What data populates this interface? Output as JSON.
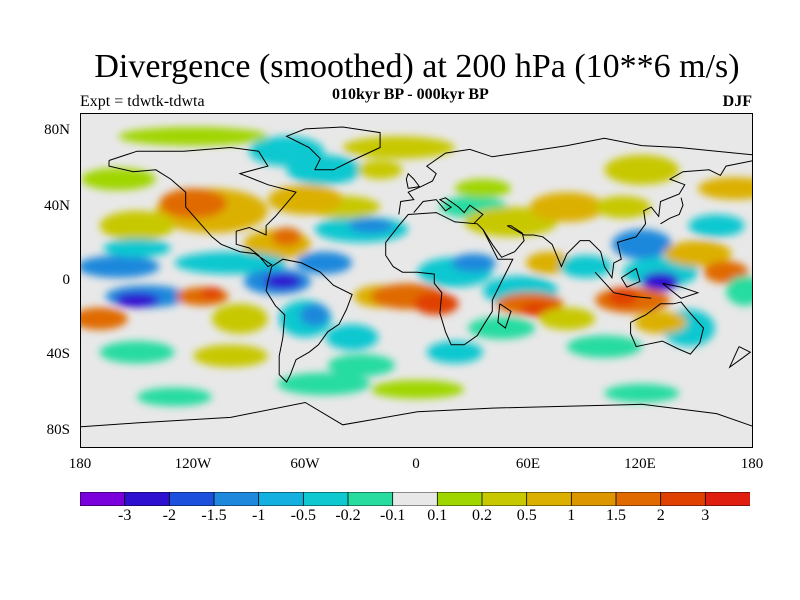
{
  "title": "Divergence (smoothed) at 200 hPa (10**6 m/s)",
  "subtitle": "010kyr BP - 000kyr BP",
  "experiment": "Expt = tdwtk-tdwta",
  "season": "DJF",
  "y_axis_ticks": [
    "80N",
    "40N",
    "0",
    "40S",
    "80S"
  ],
  "x_axis_ticks": [
    "180",
    "120W",
    "60W",
    "0",
    "60E",
    "120E",
    "180"
  ],
  "colorbar": {
    "colors": [
      "#7a00dc",
      "#2d10d0",
      "#1c4fdc",
      "#1e88dc",
      "#14b0e0",
      "#10c8d0",
      "#28dca0",
      "#e8e8e8",
      "#a0d600",
      "#c8c800",
      "#dcb000",
      "#dc9600",
      "#e06a00",
      "#e04000",
      "#e01e10"
    ],
    "labels": [
      "-3",
      "-2",
      "-1.5",
      "-1",
      "-0.5",
      "-0.2",
      "-0.1",
      "0.1",
      "0.2",
      "0.5",
      "1",
      "1.5",
      "2",
      "3"
    ]
  },
  "palette": {
    "neg_strong": "#2d10d0",
    "neg_mid": "#1e88dc",
    "neg_weak": "#10c8d0",
    "neg_faint": "#28dca0",
    "neutral": "#e8e8e8",
    "pos_faint": "#a0d600",
    "pos_weak": "#c8c800",
    "pos_mid": "#dcb000",
    "pos_strong": "#dc9600",
    "pos_max": "#e06a00",
    "pos_peak": "#e04000"
  }
}
